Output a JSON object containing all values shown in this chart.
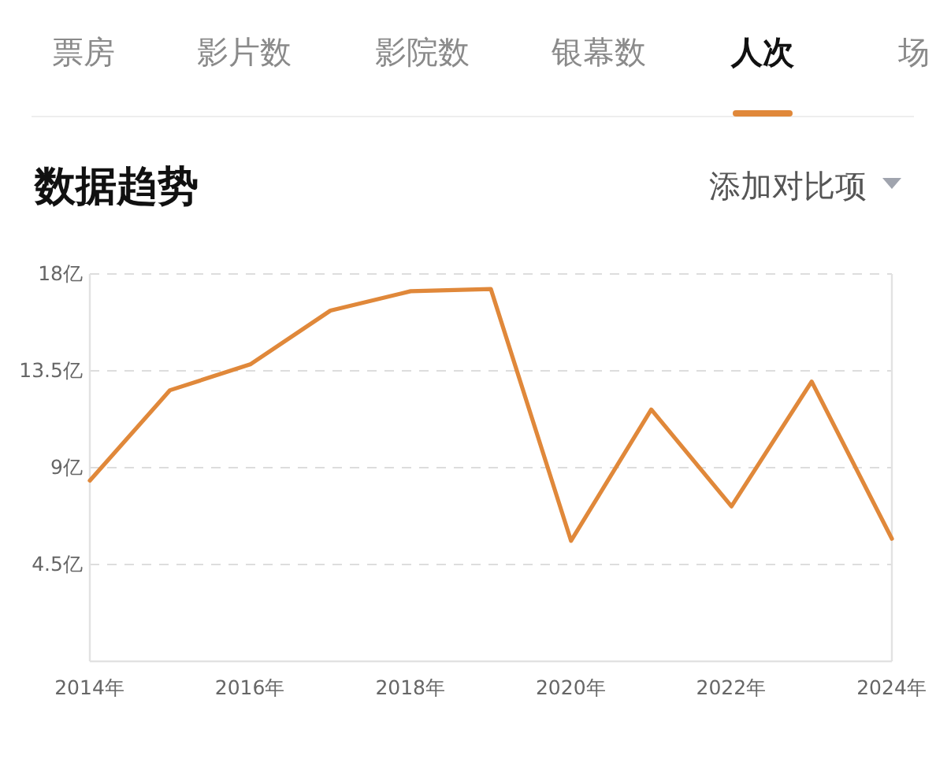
{
  "chart_data": {
    "type": "line",
    "title": "数据趋势",
    "annotations": [
      "票房",
      "影片数",
      "影院数",
      "银幕数",
      "人次",
      "场",
      "添加对比项"
    ],
    "x": [
      2014,
      2015,
      2016,
      2017,
      2018,
      2019,
      2020,
      2021,
      2022,
      2023,
      2024
    ],
    "series": [
      {
        "color": "#e0883a",
        "values": [
          8.4,
          12.6,
          13.8,
          16.3,
          17.2,
          17.3,
          5.6,
          11.7,
          7.2,
          13.0,
          5.7
        ]
      }
    ],
    "xlim": [
      2014,
      2024
    ],
    "xticks": [
      {
        "value": 2014,
        "label": "2014年"
      },
      {
        "value": 2016,
        "label": "2016年"
      },
      {
        "value": 2018,
        "label": "2018年"
      },
      {
        "value": 2020,
        "label": "2020年"
      },
      {
        "value": 2022,
        "label": "2022年"
      },
      {
        "value": 2024,
        "label": "2024年"
      }
    ],
    "ylim": [
      0,
      18
    ],
    "yticks": [
      {
        "value": 4.5,
        "label": "4.5亿"
      },
      {
        "value": 9,
        "label": "9亿"
      },
      {
        "value": 13.5,
        "label": "13.5亿"
      },
      {
        "value": 18,
        "label": "18亿"
      }
    ],
    "grid": "y",
    "line_style": "solid",
    "marker": "none"
  }
}
